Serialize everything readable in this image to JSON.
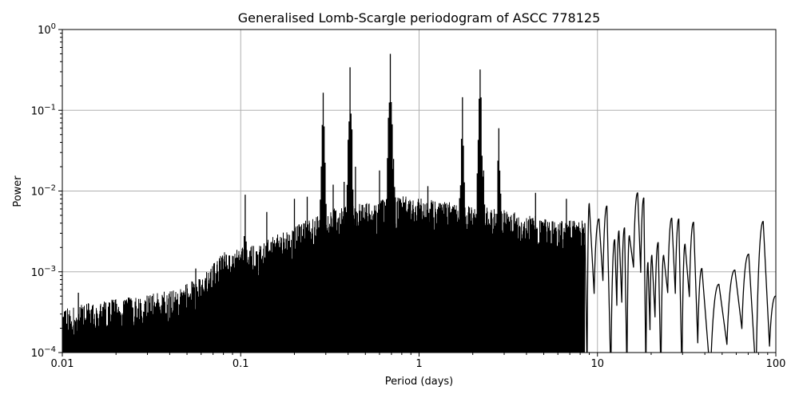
{
  "chart_data": {
    "type": "line",
    "title": "Generalised Lomb-Scargle periodogram of ASCC 778125",
    "xlabel": "Period (days)",
    "ylabel": "Power",
    "xscale": "log",
    "yscale": "log",
    "xlim": [
      0.01,
      100
    ],
    "ylim": [
      0.0001,
      1
    ],
    "grid": true,
    "legend": null,
    "x_ticks": [
      {
        "value": 0.01,
        "label": "0.01"
      },
      {
        "value": 0.1,
        "label": "0.1"
      },
      {
        "value": 1,
        "label": "1"
      },
      {
        "value": 10,
        "label": "10"
      },
      {
        "value": 100,
        "label": "100"
      }
    ],
    "y_ticks": [
      {
        "value": 0.0001,
        "base": "10",
        "exp": "−4"
      },
      {
        "value": 0.001,
        "base": "10",
        "exp": "−3"
      },
      {
        "value": 0.01,
        "base": "10",
        "exp": "−2"
      },
      {
        "value": 0.1,
        "base": "10",
        "exp": "−1"
      },
      {
        "value": 1,
        "base": "10",
        "exp": "0"
      }
    ],
    "line_color": "#000000",
    "grid_color": "#b0b0b0",
    "envelope": [
      {
        "period": 0.01,
        "power": 0.00025
      },
      {
        "period": 0.02,
        "power": 0.00032
      },
      {
        "period": 0.04,
        "power": 0.0004
      },
      {
        "period": 0.06,
        "power": 0.0006
      },
      {
        "period": 0.08,
        "power": 0.0012
      },
      {
        "period": 0.12,
        "power": 0.0015
      },
      {
        "period": 0.2,
        "power": 0.0025
      },
      {
        "period": 0.3,
        "power": 0.004
      },
      {
        "period": 0.5,
        "power": 0.005
      },
      {
        "period": 0.8,
        "power": 0.006
      },
      {
        "period": 1.5,
        "power": 0.005
      },
      {
        "period": 3,
        "power": 0.004
      },
      {
        "period": 6,
        "power": 0.003
      }
    ],
    "peaks": [
      {
        "period": 0.0123,
        "power": 0.00055
      },
      {
        "period": 0.056,
        "power": 0.0011
      },
      {
        "period": 0.106,
        "power": 0.009
      },
      {
        "period": 0.14,
        "power": 0.0055
      },
      {
        "period": 0.2,
        "power": 0.008
      },
      {
        "period": 0.236,
        "power": 0.0085
      },
      {
        "period": 0.29,
        "power": 0.165
      },
      {
        "period": 0.33,
        "power": 0.012
      },
      {
        "period": 0.38,
        "power": 0.013
      },
      {
        "period": 0.41,
        "power": 0.34
      },
      {
        "period": 0.44,
        "power": 0.02
      },
      {
        "period": 0.6,
        "power": 0.018
      },
      {
        "period": 0.69,
        "power": 0.5
      },
      {
        "period": 0.72,
        "power": 0.025
      },
      {
        "period": 1.12,
        "power": 0.0115
      },
      {
        "period": 1.75,
        "power": 0.145
      },
      {
        "period": 2.2,
        "power": 0.32
      },
      {
        "period": 2.3,
        "power": 0.018
      },
      {
        "period": 2.8,
        "power": 0.06
      },
      {
        "period": 4.5,
        "power": 0.0095
      },
      {
        "period": 6.7,
        "power": 0.008
      }
    ],
    "long_period_lobes": [
      {
        "period": 9.0,
        "power": 0.007
      },
      {
        "period": 10.2,
        "power": 0.0045
      },
      {
        "period": 11.3,
        "power": 0.0065
      },
      {
        "period": 12.5,
        "power": 0.0025
      },
      {
        "period": 13.2,
        "power": 0.0032
      },
      {
        "period": 14.2,
        "power": 0.0035
      },
      {
        "period": 15.1,
        "power": 0.0028
      },
      {
        "period": 16.8,
        "power": 0.0095
      },
      {
        "period": 18.2,
        "power": 0.0082
      },
      {
        "period": 19.2,
        "power": 0.0013
      },
      {
        "period": 20.2,
        "power": 0.0016
      },
      {
        "period": 21.9,
        "power": 0.0023
      },
      {
        "period": 23.5,
        "power": 0.0016
      },
      {
        "period": 26.1,
        "power": 0.0046
      },
      {
        "period": 28.6,
        "power": 0.0045
      },
      {
        "period": 31.0,
        "power": 0.0022
      },
      {
        "period": 34.6,
        "power": 0.0041
      },
      {
        "period": 38.5,
        "power": 0.0011
      },
      {
        "period": 48.0,
        "power": 0.0007
      },
      {
        "period": 59.0,
        "power": 0.00105
      },
      {
        "period": 70.5,
        "power": 0.00165
      },
      {
        "period": 85.0,
        "power": 0.0042
      },
      {
        "period": 100.0,
        "power": 0.0005
      }
    ]
  }
}
